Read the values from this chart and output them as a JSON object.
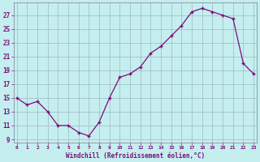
{
  "x_vals": [
    0,
    1,
    2,
    3,
    4,
    5,
    6,
    7,
    8,
    9,
    10,
    11,
    12,
    13,
    14,
    15,
    16,
    17,
    18,
    19,
    20,
    21,
    22,
    23
  ],
  "y_vals": [
    15,
    14,
    14.5,
    13,
    11,
    11,
    10,
    9.5,
    11.5,
    15,
    18,
    18.5,
    19.5,
    21.5,
    22.5,
    24,
    25.5,
    27.5,
    28,
    27.5,
    27,
    26.5,
    20,
    18.5
  ],
  "yticks": [
    9,
    11,
    13,
    15,
    17,
    19,
    21,
    23,
    25,
    27
  ],
  "xticks": [
    0,
    1,
    2,
    3,
    4,
    5,
    6,
    7,
    8,
    9,
    10,
    11,
    12,
    13,
    14,
    15,
    16,
    17,
    18,
    19,
    20,
    21,
    22,
    23
  ],
  "xlabel": "Windchill (Refroidissement éolien,°C)",
  "ylim_min": 8.5,
  "ylim_max": 28.8,
  "xlim_min": -0.3,
  "xlim_max": 23.3,
  "line_color": "#7b0d7b",
  "bg_color": "#c5eeee",
  "grid_color": "#9db8c8",
  "tick_color": "#7b0d7b",
  "label_color": "#7b0d7b"
}
